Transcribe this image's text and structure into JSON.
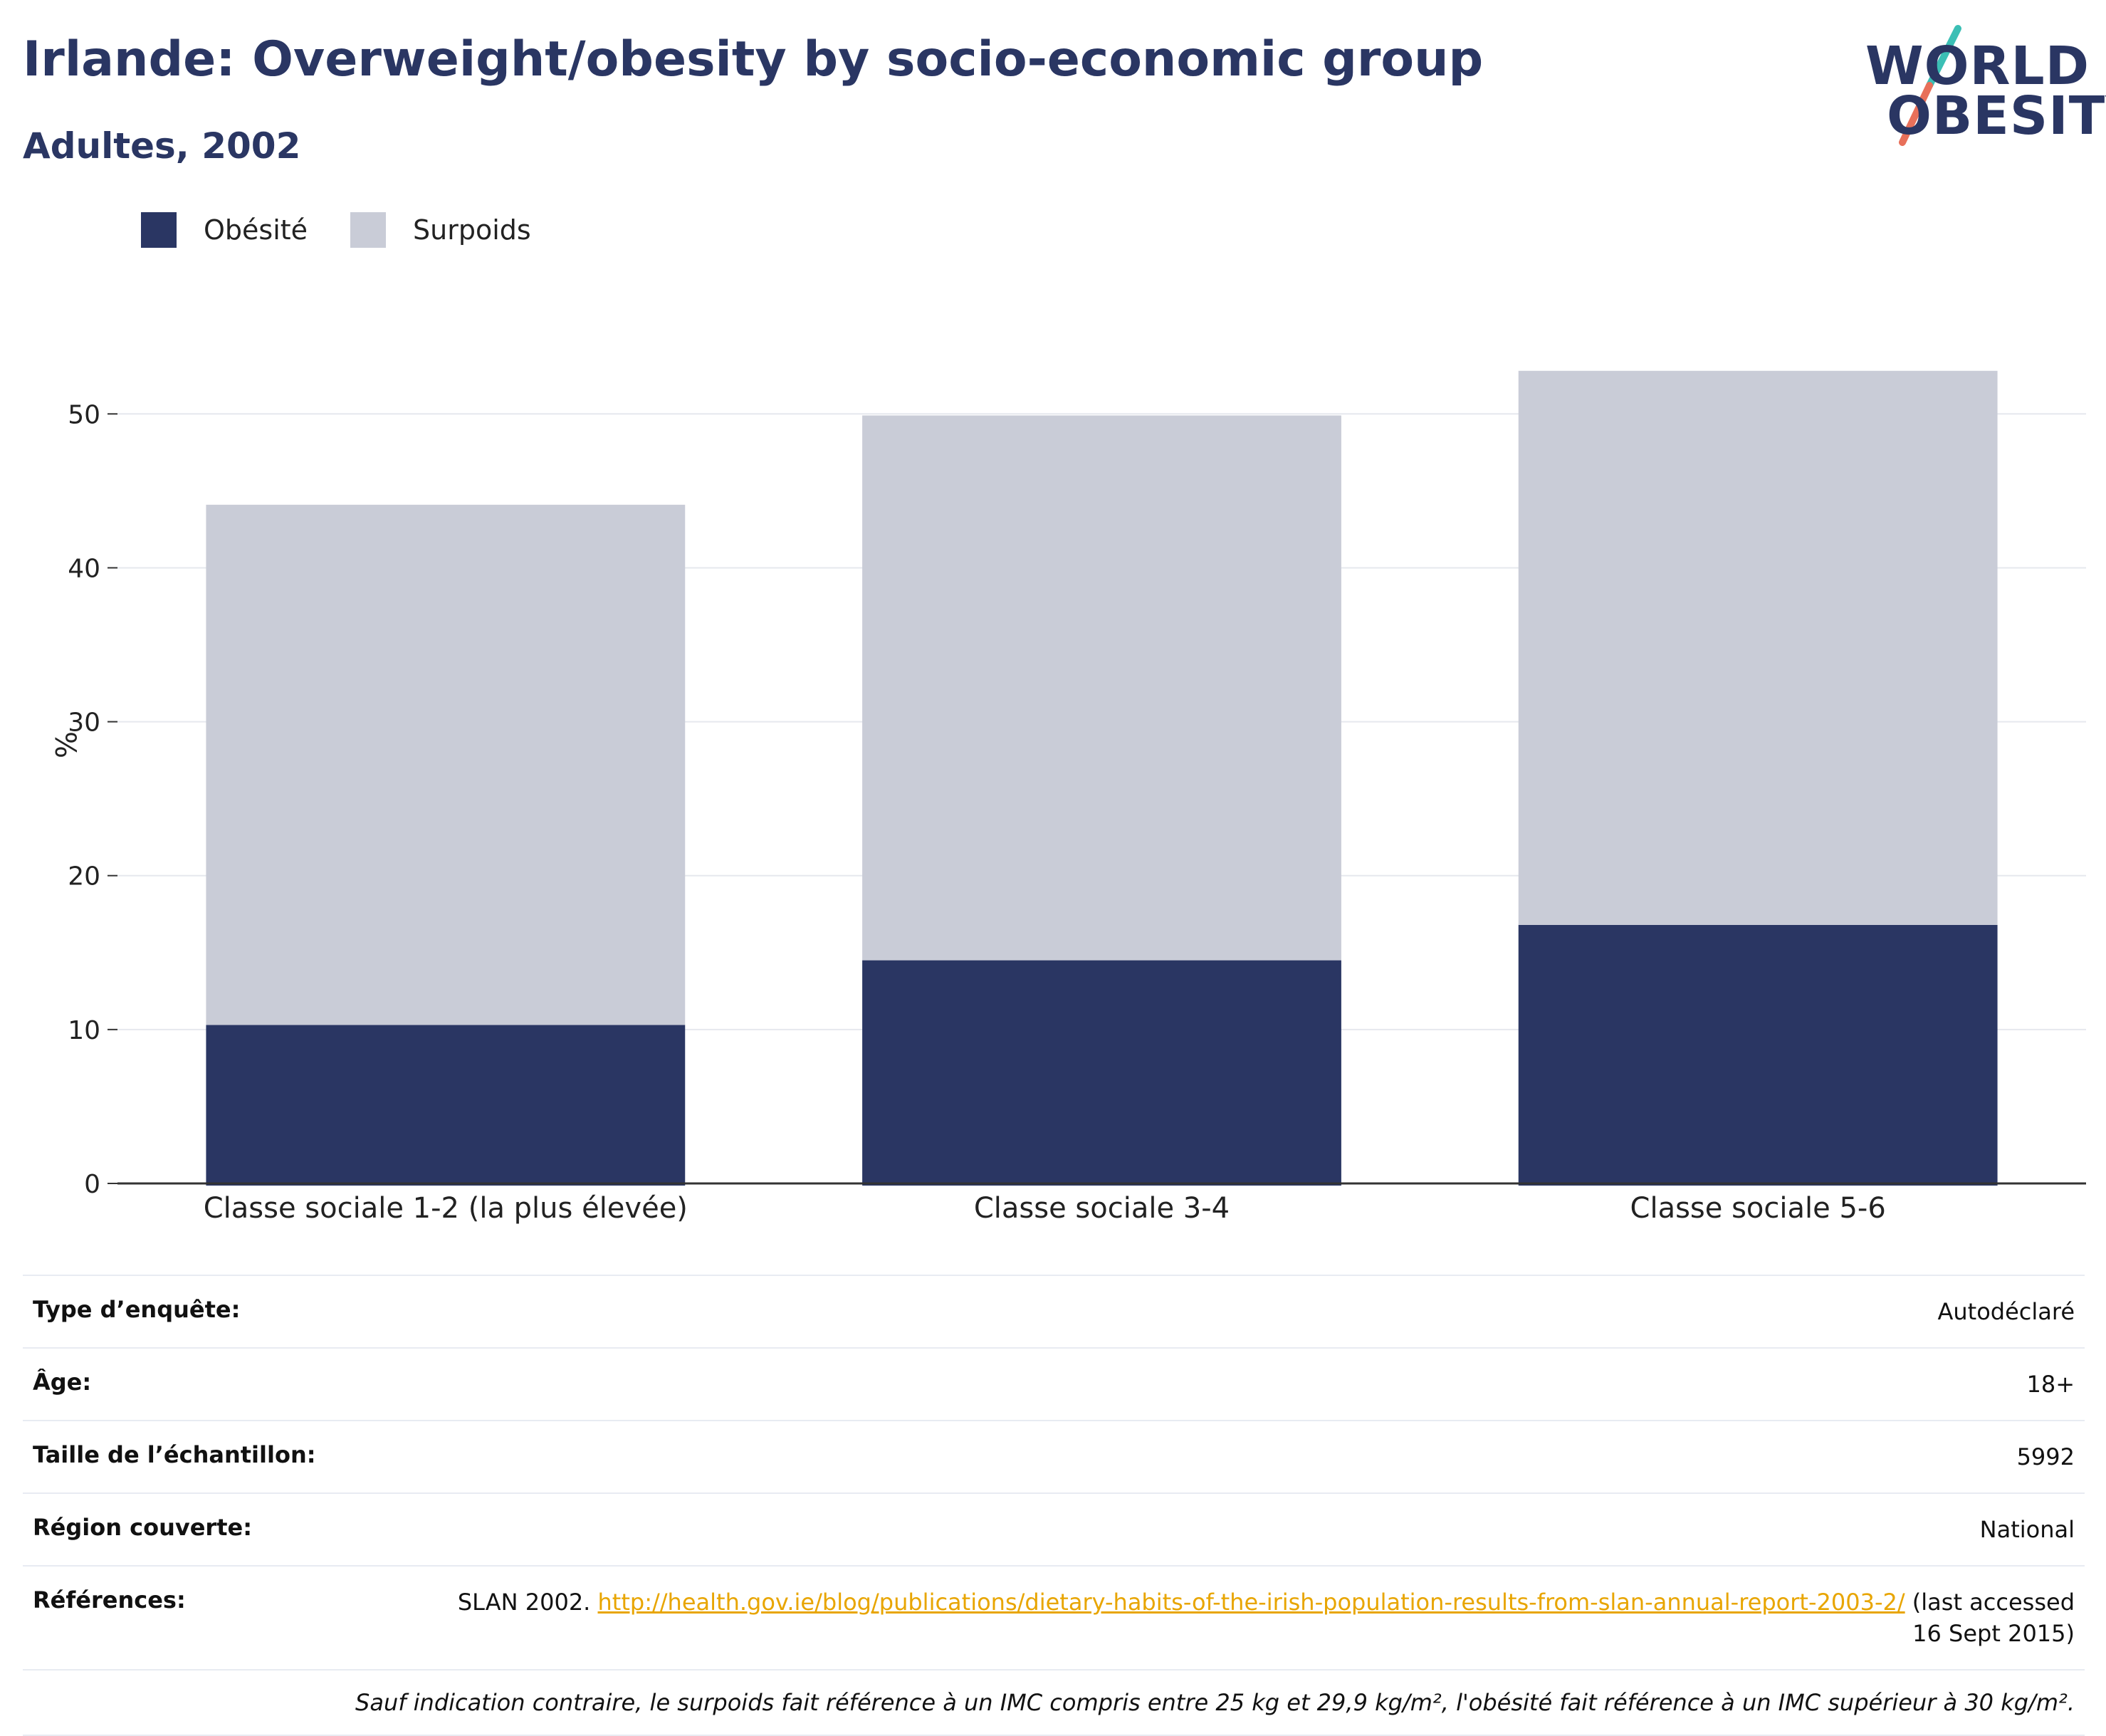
{
  "header": {
    "title": "Irlande: Overweight/obesity by socio-economic group",
    "subtitle": "Adultes, 2002"
  },
  "logo": {
    "line1": "WORLD",
    "line2": "OBESITY",
    "accent1": "#3bbfb5",
    "accent2": "#e8705a"
  },
  "colors": {
    "obesity": "#2a3663",
    "overweight": "#c9ccd7",
    "grid": "#e6e8ee",
    "axis": "#333333"
  },
  "legend": [
    {
      "label": "Obésité",
      "color": "#2a3663"
    },
    {
      "label": "Surpoids",
      "color": "#c9ccd7"
    }
  ],
  "chart_data": {
    "type": "bar",
    "stacked": true,
    "categories": [
      "Classe sociale 1-2 (la plus élevée)",
      "Classe sociale 3-4",
      "Classe sociale 5-6"
    ],
    "series": [
      {
        "name": "Obésité",
        "values": [
          10.3,
          14.5,
          16.8
        ]
      },
      {
        "name": "Surpoids",
        "values": [
          33.8,
          35.4,
          36.0
        ]
      }
    ],
    "ylabel": "%",
    "ylim": [
      0,
      57
    ],
    "yticks": [
      0,
      10,
      20,
      30,
      40,
      50
    ],
    "grid": true,
    "legend_position": "top-left"
  },
  "meta": {
    "rows": [
      {
        "key": "Type d’enquête:",
        "value": "Autodéclaré"
      },
      {
        "key": "Âge:",
        "value": "18+"
      },
      {
        "key": "Taille de l’échantillon:",
        "value": "5992"
      },
      {
        "key": "Région couverte:",
        "value": "National"
      }
    ],
    "references": {
      "key": "Références:",
      "prefix": "SLAN 2002. ",
      "link": "http://health.gov.ie/blog/publications/dietary-habits-of-the-irish-population-results-from-slan-annual-report-2003-2/",
      "suffix": " (last accessed 16 Sept 2015)"
    },
    "note": "Sauf indication contraire, le surpoids fait référence à un IMC compris entre 25 kg et 29,9 kg/m², l'obésité fait référence à un IMC supérieur à 30 kg/m²."
  }
}
